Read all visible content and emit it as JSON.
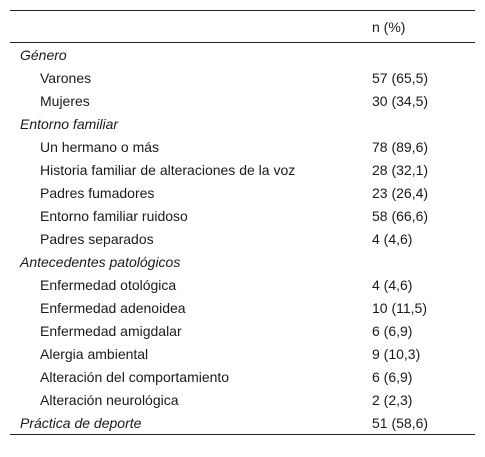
{
  "table": {
    "header": {
      "label": "",
      "value": "n (%)"
    },
    "rows": [
      {
        "label": "Género",
        "value": "",
        "kind": "group"
      },
      {
        "label": "Varones",
        "value": "57 (65,5)",
        "kind": "sub"
      },
      {
        "label": "Mujeres",
        "value": "30 (34,5)",
        "kind": "sub"
      },
      {
        "label": "Entorno familiar",
        "value": "",
        "kind": "group"
      },
      {
        "label": "Un hermano o más",
        "value": "78 (89,6)",
        "kind": "sub"
      },
      {
        "label": "Historia familiar de alteraciones de la voz",
        "value": "28 (32,1)",
        "kind": "sub"
      },
      {
        "label": "Padres fumadores",
        "value": "23 (26,4)",
        "kind": "sub"
      },
      {
        "label": "Entorno familiar ruidoso",
        "value": "58 (66,6)",
        "kind": "sub"
      },
      {
        "label": "Padres separados",
        "value": "4 (4,6)",
        "kind": "sub"
      },
      {
        "label": "Antecedentes patológicos",
        "value": "",
        "kind": "group"
      },
      {
        "label": "Enfermedad otológica",
        "value": "4 (4,6)",
        "kind": "sub"
      },
      {
        "label": "Enfermedad adenoidea",
        "value": "10 (11,5)",
        "kind": "sub"
      },
      {
        "label": "Enfermedad amigdalar",
        "value": "6 (6,9)",
        "kind": "sub"
      },
      {
        "label": "Alergia ambiental",
        "value": "9 (10,3)",
        "kind": "sub"
      },
      {
        "label": "Alteración del comportamiento",
        "value": "6 (6,9)",
        "kind": "sub"
      },
      {
        "label": "Alteración neurológica",
        "value": "2 (2,3)",
        "kind": "sub"
      },
      {
        "label": "Práctica de deporte",
        "value": "51 (58,6)",
        "kind": "group"
      }
    ]
  }
}
